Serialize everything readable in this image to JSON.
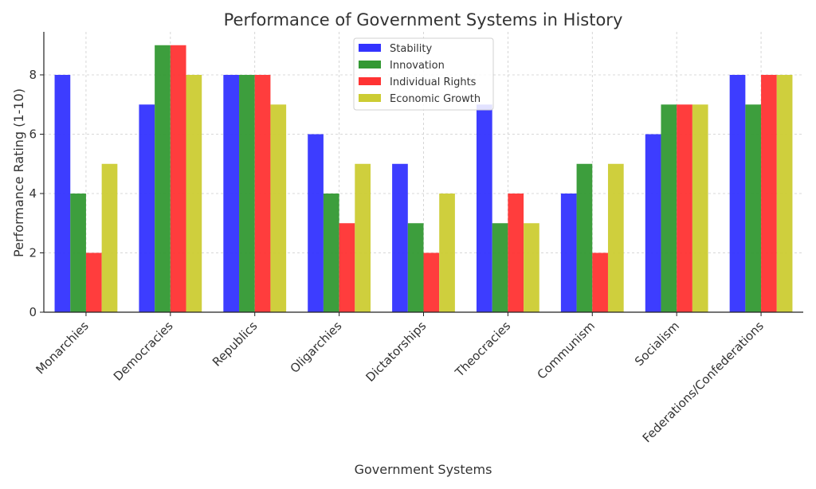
{
  "chart_data": {
    "type": "bar",
    "title": "Performance of Government Systems in History",
    "xlabel": "Government Systems",
    "ylabel": "Performance Rating (1-10)",
    "ylim": [
      0,
      9.45
    ],
    "yticks": [
      0,
      2,
      4,
      6,
      8
    ],
    "grid": true,
    "legend_position": "top-center",
    "categories": [
      "Monarchies",
      "Democracies",
      "Republics",
      "Oligarchies",
      "Dictatorships",
      "Theocracies",
      "Communism",
      "Socialism",
      "Federations/Confederations"
    ],
    "series": [
      {
        "name": "Stability",
        "color": "#3333ff",
        "values": [
          8,
          7,
          8,
          6,
          5,
          7,
          4,
          6,
          8
        ]
      },
      {
        "name": "Innovation",
        "color": "#339933",
        "values": [
          4,
          9,
          8,
          4,
          3,
          3,
          5,
          7,
          7
        ]
      },
      {
        "name": "Individual Rights",
        "color": "#ff3333",
        "values": [
          2,
          9,
          8,
          3,
          2,
          4,
          2,
          7,
          8
        ]
      },
      {
        "name": "Economic Growth",
        "color": "#cccc33",
        "values": [
          5,
          8,
          7,
          5,
          4,
          3,
          5,
          7,
          8
        ]
      }
    ]
  }
}
